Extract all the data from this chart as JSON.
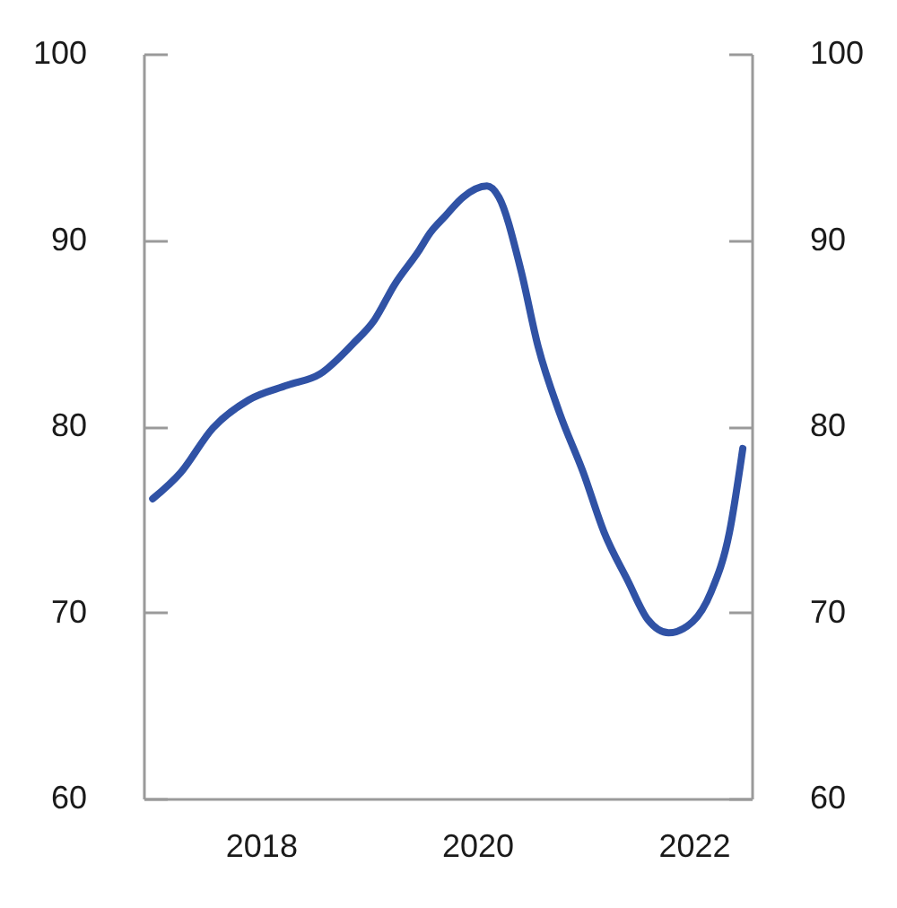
{
  "chart_data": {
    "type": "line",
    "x": [
      "2017-01-01",
      "2017-04-05",
      "2017-07-23",
      "2017-11-20",
      "2018-04-01",
      "2018-07-19",
      "2018-11-06",
      "2019-01-19",
      "2019-03-28",
      "2019-06-17",
      "2019-07-27",
      "2019-09-16",
      "2019-11-14",
      "2020-02-03",
      "2020-03-14",
      "2020-05-27",
      "2020-07-24",
      "2020-10-05",
      "2020-12-24",
      "2021-03-04",
      "2021-05-23",
      "2021-07-30",
      "2021-10-08",
      "2021-12-28",
      "2022-02-28",
      "2022-05-01",
      "2022-06-15"
    ],
    "series": [
      {
        "color": "#3052a5",
        "values": [
          76.1,
          77.5,
          79.9,
          81.4,
          82.2,
          82.8,
          84.4,
          85.7,
          87.6,
          89.4,
          90.4,
          91.3,
          92.3,
          92.9,
          92.3,
          88.4,
          84.3,
          80.7,
          77.5,
          74.3,
          71.7,
          69.6,
          68.9,
          69.5,
          71.1,
          74.3,
          78.8
        ]
      }
    ],
    "xlim": [
      "2016-12",
      "2022-07-15"
    ],
    "xticks": [
      "2018",
      "2020",
      "2022"
    ],
    "ylim": [
      60,
      100
    ],
    "yticks": [
      60,
      70,
      80,
      90,
      100
    ],
    "y2lim": [
      60,
      100
    ],
    "y2ticks": [
      60,
      70,
      80,
      90,
      100
    ],
    "line_style": "solid"
  }
}
